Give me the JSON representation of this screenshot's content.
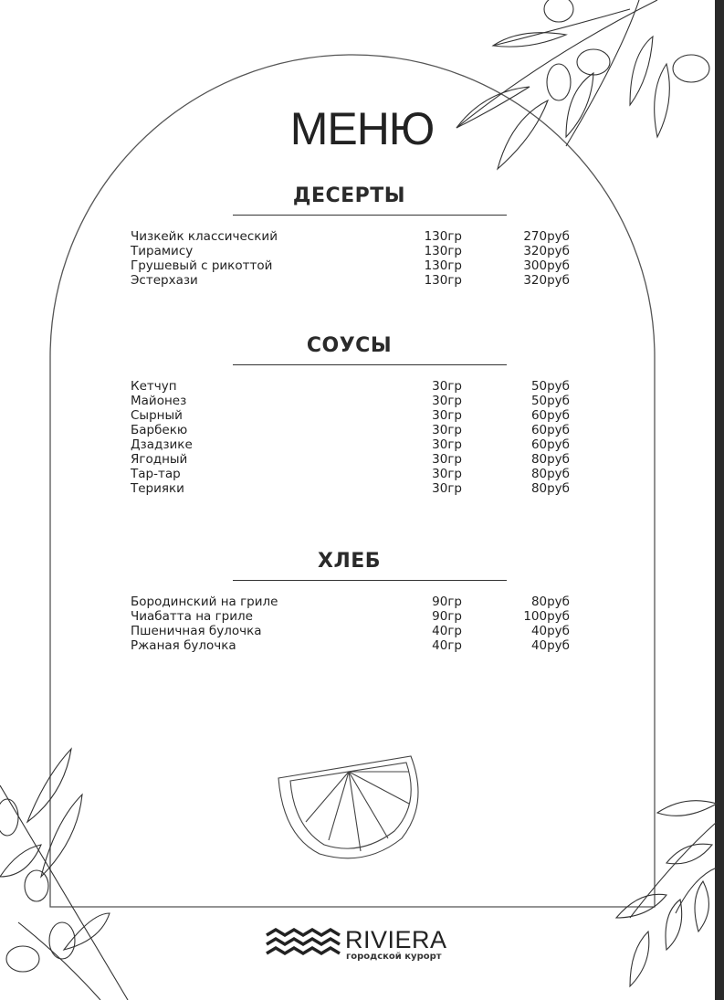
{
  "title": "МЕНЮ",
  "sections": [
    {
      "title": "ДЕСЕРТЫ",
      "items": [
        {
          "name": "Чизкейк классический",
          "weight": "130гр",
          "price": "270руб"
        },
        {
          "name": "Тирамису",
          "weight": "130гр",
          "price": "320руб"
        },
        {
          "name": "Грушевый с рикоттой",
          "weight": "130гр",
          "price": "300руб"
        },
        {
          "name": "Эстерхази",
          "weight": "130гр",
          "price": "320руб"
        }
      ]
    },
    {
      "title": "СОУСЫ",
      "items": [
        {
          "name": "Кетчуп",
          "weight": "30гр",
          "price": "50руб"
        },
        {
          "name": "Майонез",
          "weight": "30гр",
          "price": "50руб"
        },
        {
          "name": "Сырный",
          "weight": "30гр",
          "price": "60руб"
        },
        {
          "name": "Барбекю",
          "weight": "30гр",
          "price": "60руб"
        },
        {
          "name": "Дзадзике",
          "weight": "30гр",
          "price": "60руб"
        },
        {
          "name": "Ягодный",
          "weight": "30гр",
          "price": "80руб"
        },
        {
          "name": "Тар-тар",
          "weight": "30гр",
          "price": "80руб"
        },
        {
          "name": "Терияки",
          "weight": "30гр",
          "price": "80руб"
        }
      ]
    },
    {
      "title": "ХЛЕБ",
      "items": [
        {
          "name": "Бородинский на гриле",
          "weight": "90гр",
          "price": "80руб"
        },
        {
          "name": "Чиабатта на гриле",
          "weight": "90гр",
          "price": "100руб"
        },
        {
          "name": "Пшеничная булочка",
          "weight": "40гр",
          "price": "40руб"
        },
        {
          "name": "Ржаная булочка",
          "weight": "40гр",
          "price": "40руб"
        }
      ]
    }
  ],
  "logo": {
    "name": "RIVIERA",
    "subtitle": "городской курорт"
  }
}
